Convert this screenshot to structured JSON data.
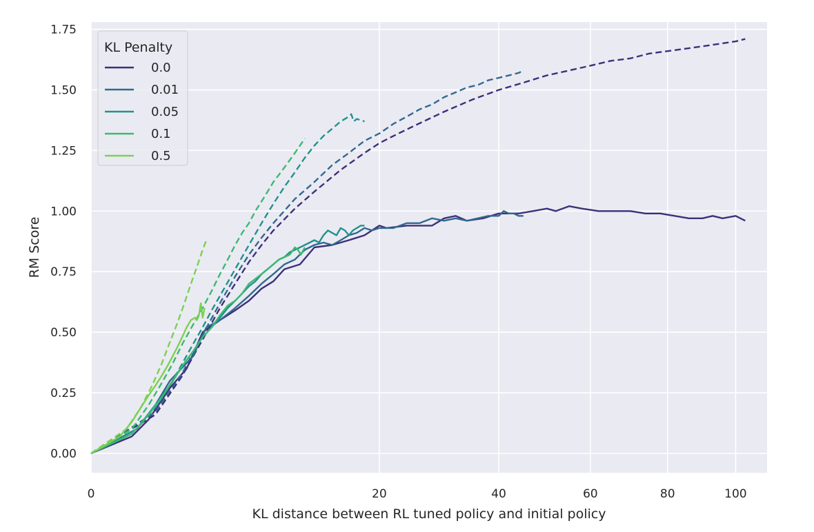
{
  "chart_data": {
    "type": "line",
    "xlabel": "KL distance between RL tuned policy and initial policy",
    "ylabel": "RM Score",
    "x_scale": "sqrt",
    "xlim": [
      0,
      110
    ],
    "ylim": [
      -0.08,
      1.78
    ],
    "x_ticks": [
      0,
      20,
      40,
      60,
      80,
      100
    ],
    "y_ticks": [
      0.0,
      0.25,
      0.5,
      0.75,
      1.0,
      1.25,
      1.5,
      1.75
    ],
    "y_tick_labels": [
      "0.00",
      "0.25",
      "0.50",
      "0.75",
      "1.00",
      "1.25",
      "1.50",
      "1.75"
    ],
    "grid": true,
    "background_color": "#eaeaf2",
    "legend": {
      "title": "KL Penalty",
      "placement": "top-left"
    },
    "line_styles": {
      "gold": "solid",
      "proxy": "dashed"
    },
    "series": [
      {
        "name": "0.0",
        "color": "#3d2f7a",
        "gold": {
          "x": [
            0,
            0.4,
            0.8,
            1.5,
            2.2,
            3.0,
            4.0,
            5.0,
            6.0,
            7.0,
            8.0,
            9.0,
            10.5,
            12.0,
            14.0,
            16.0,
            18.0,
            20.0,
            21.0,
            24.0,
            28.0,
            30.0,
            32.0,
            34.0,
            37.0,
            40.0,
            44.0,
            47.0,
            50.0,
            52.0,
            55.0,
            58.0,
            62.0,
            66.0,
            70.0,
            74.0,
            78.0,
            82.0,
            86.0,
            90.0,
            93.0,
            96.0,
            100.0,
            103.0
          ],
          "y": [
            0,
            0.07,
            0.14,
            0.27,
            0.35,
            0.5,
            0.55,
            0.59,
            0.63,
            0.68,
            0.71,
            0.76,
            0.78,
            0.85,
            0.86,
            0.88,
            0.9,
            0.94,
            0.93,
            0.94,
            0.94,
            0.97,
            0.98,
            0.96,
            0.97,
            0.99,
            0.99,
            1.0,
            1.01,
            1.0,
            1.02,
            1.01,
            1.0,
            1.0,
            1.0,
            0.99,
            0.99,
            0.98,
            0.97,
            0.97,
            0.98,
            0.97,
            0.98,
            0.96
          ]
        },
        "proxy": {
          "x": [
            0,
            1,
            2,
            3,
            4,
            5,
            6,
            7,
            8,
            10,
            12,
            15,
            18,
            20,
            22,
            25,
            30,
            35,
            40,
            45,
            50,
            55,
            60,
            65,
            70,
            75,
            80,
            85,
            90,
            95,
            100,
            103
          ],
          "y": [
            0,
            0.16,
            0.32,
            0.47,
            0.6,
            0.7,
            0.79,
            0.86,
            0.92,
            1.01,
            1.08,
            1.17,
            1.24,
            1.28,
            1.31,
            1.35,
            1.41,
            1.46,
            1.5,
            1.53,
            1.56,
            1.58,
            1.6,
            1.62,
            1.63,
            1.65,
            1.66,
            1.67,
            1.68,
            1.69,
            1.7,
            1.71
          ]
        }
      },
      {
        "name": "0.01",
        "color": "#31688e",
        "gold": {
          "x": [
            0,
            0.5,
            1.0,
            1.5,
            2.5,
            3.2,
            4.0,
            5.0,
            6.0,
            7.0,
            8.0,
            9.0,
            10.0,
            11.0,
            12.0,
            13.0,
            14.0,
            15.0,
            16.0,
            17.0,
            18.0,
            19.0,
            20.0,
            21.0,
            22.0,
            24.0,
            26.0,
            28.0,
            30.0,
            32.0,
            34.0,
            36.0,
            38.0,
            40.0,
            41.0,
            42.0,
            43.0,
            44.0,
            45.0
          ],
          "y": [
            0,
            0.1,
            0.2,
            0.3,
            0.4,
            0.52,
            0.55,
            0.6,
            0.65,
            0.7,
            0.74,
            0.78,
            0.8,
            0.84,
            0.86,
            0.87,
            0.86,
            0.88,
            0.9,
            0.91,
            0.93,
            0.92,
            0.93,
            0.93,
            0.93,
            0.95,
            0.95,
            0.97,
            0.96,
            0.97,
            0.96,
            0.97,
            0.98,
            0.98,
            1.0,
            0.99,
            0.99,
            0.98,
            0.98
          ]
        },
        "proxy": {
          "x": [
            0,
            1,
            2,
            3,
            4,
            5,
            6,
            7,
            8,
            10,
            12,
            14,
            16,
            18,
            20,
            22,
            24,
            26,
            28,
            30,
            32,
            34,
            36,
            38,
            40,
            42,
            44,
            45
          ],
          "y": [
            0,
            0.17,
            0.33,
            0.49,
            0.62,
            0.73,
            0.82,
            0.89,
            0.95,
            1.05,
            1.12,
            1.19,
            1.24,
            1.29,
            1.32,
            1.36,
            1.39,
            1.42,
            1.44,
            1.47,
            1.49,
            1.51,
            1.52,
            1.54,
            1.55,
            1.56,
            1.57,
            1.58
          ]
        }
      },
      {
        "name": "0.05",
        "color": "#21918c",
        "gold": {
          "x": [
            0,
            0.5,
            1.0,
            1.5,
            2.0,
            2.5,
            3.0,
            3.5,
            4.0,
            4.5,
            5.0,
            5.5,
            6.0,
            6.5,
            7.0,
            7.5,
            8.0,
            8.5,
            9.0,
            9.5,
            10.0,
            10.5,
            11.0,
            11.5,
            12.0,
            12.5,
            13.0,
            13.5,
            14.0,
            14.5,
            15.0,
            15.5,
            16.0,
            16.5,
            17.0,
            17.5,
            18.0
          ],
          "y": [
            0,
            0.1,
            0.2,
            0.28,
            0.36,
            0.42,
            0.48,
            0.52,
            0.56,
            0.6,
            0.63,
            0.66,
            0.69,
            0.71,
            0.74,
            0.76,
            0.78,
            0.8,
            0.81,
            0.83,
            0.84,
            0.85,
            0.86,
            0.87,
            0.88,
            0.87,
            0.9,
            0.92,
            0.91,
            0.9,
            0.93,
            0.92,
            0.9,
            0.92,
            0.93,
            0.94,
            0.94
          ]
        },
        "proxy": {
          "x": [
            0,
            0.5,
            1,
            1.5,
            2,
            2.5,
            3,
            3.5,
            4,
            5,
            6,
            7,
            8,
            9,
            10,
            11,
            12,
            13,
            14,
            15,
            16,
            16.3,
            16.6,
            17,
            18
          ],
          "y": [
            0,
            0.1,
            0.19,
            0.28,
            0.37,
            0.45,
            0.52,
            0.59,
            0.65,
            0.76,
            0.86,
            0.95,
            1.03,
            1.1,
            1.16,
            1.22,
            1.27,
            1.31,
            1.34,
            1.37,
            1.39,
            1.4,
            1.37,
            1.38,
            1.37
          ]
        }
      },
      {
        "name": "0.1",
        "color": "#3cb970",
        "gold": {
          "x": [
            0,
            0.4,
            0.8,
            1.2,
            1.6,
            2.0,
            2.5,
            3.0,
            3.5,
            4.0,
            4.5,
            5.0,
            5.5,
            6.0,
            6.5,
            7.0,
            7.5,
            8.0,
            8.5,
            9.0,
            9.5,
            10.0,
            10.3,
            10.6,
            11.0
          ],
          "y": [
            0,
            0.08,
            0.16,
            0.23,
            0.3,
            0.36,
            0.42,
            0.48,
            0.52,
            0.57,
            0.61,
            0.63,
            0.66,
            0.7,
            0.72,
            0.74,
            0.76,
            0.78,
            0.8,
            0.81,
            0.82,
            0.85,
            0.84,
            0.82,
            0.85
          ]
        },
        "proxy": {
          "x": [
            0,
            0.4,
            0.8,
            1.2,
            1.6,
            2.0,
            2.5,
            3.0,
            3.5,
            4.0,
            4.5,
            5.0,
            5.5,
            6.0,
            6.5,
            7.0,
            7.5,
            8.0,
            8.5,
            9.0,
            9.5,
            10.0,
            10.5,
            11.0
          ],
          "y": [
            0,
            0.1,
            0.2,
            0.29,
            0.37,
            0.45,
            0.53,
            0.6,
            0.67,
            0.74,
            0.8,
            0.86,
            0.91,
            0.95,
            1.0,
            1.04,
            1.08,
            1.12,
            1.15,
            1.18,
            1.21,
            1.24,
            1.27,
            1.3
          ]
        }
      },
      {
        "name": "0.5",
        "color": "#7ad151",
        "gold": {
          "x": [
            0,
            0.2,
            0.4,
            0.6,
            0.8,
            1.0,
            1.2,
            1.4,
            1.6,
            1.8,
            2.0,
            2.2,
            2.4,
            2.6,
            2.7,
            2.8,
            2.9,
            3.0,
            3.1
          ],
          "y": [
            0,
            0.07,
            0.13,
            0.19,
            0.24,
            0.28,
            0.32,
            0.36,
            0.4,
            0.44,
            0.48,
            0.52,
            0.55,
            0.56,
            0.55,
            0.57,
            0.62,
            0.56,
            0.6
          ]
        },
        "proxy": {
          "x": [
            0,
            0.3,
            0.6,
            0.9,
            1.2,
            1.5,
            1.8,
            2.1,
            2.4,
            2.7,
            3.0,
            3.2
          ],
          "y": [
            0,
            0.1,
            0.19,
            0.28,
            0.37,
            0.46,
            0.54,
            0.62,
            0.7,
            0.77,
            0.84,
            0.88
          ]
        }
      }
    ]
  }
}
